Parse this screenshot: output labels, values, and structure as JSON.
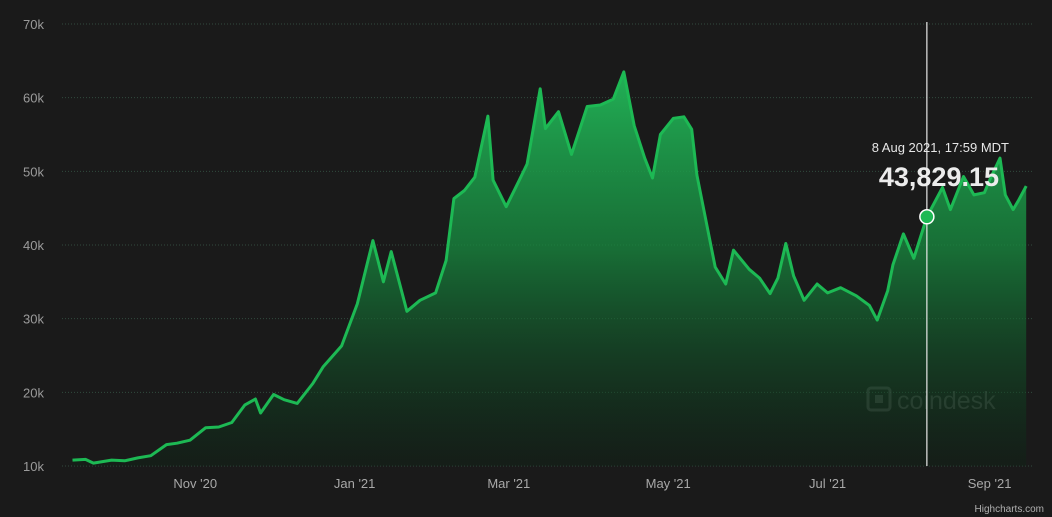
{
  "chart_data": {
    "type": "area",
    "title": "",
    "xlabel": "",
    "ylabel": "",
    "ylim": [
      10000,
      70000
    ],
    "xlim": [
      "2020-09-11",
      "2021-09-18"
    ],
    "grid": true,
    "y_ticks": [
      "10k",
      "20k",
      "30k",
      "40k",
      "50k",
      "60k",
      "70k"
    ],
    "x_ticks": [
      {
        "label": "Nov '20",
        "date": "2020-11-01"
      },
      {
        "label": "Jan '21",
        "date": "2021-01-01"
      },
      {
        "label": "Mar '21",
        "date": "2021-03-01"
      },
      {
        "label": "May '21",
        "date": "2021-05-01"
      },
      {
        "label": "Jul '21",
        "date": "2021-07-01"
      },
      {
        "label": "Sep '21",
        "date": "2021-09-01"
      }
    ],
    "colors": {
      "line": "#1db954",
      "fill_top": "#1f9e4c",
      "background": "#1a1a1a"
    },
    "series": [
      {
        "points": [
          [
            "2020-09-15",
            10800
          ],
          [
            "2020-09-20",
            10900
          ],
          [
            "2020-09-23",
            10400
          ],
          [
            "2020-09-30",
            10800
          ],
          [
            "2020-10-05",
            10700
          ],
          [
            "2020-10-10",
            11100
          ],
          [
            "2020-10-15",
            11400
          ],
          [
            "2020-10-21",
            12900
          ],
          [
            "2020-10-25",
            13100
          ],
          [
            "2020-10-30",
            13500
          ],
          [
            "2020-11-05",
            15200
          ],
          [
            "2020-11-10",
            15300
          ],
          [
            "2020-11-15",
            15900
          ],
          [
            "2020-11-20",
            18300
          ],
          [
            "2020-11-24",
            19100
          ],
          [
            "2020-11-26",
            17200
          ],
          [
            "2020-12-01",
            19700
          ],
          [
            "2020-12-05",
            19000
          ],
          [
            "2020-12-10",
            18500
          ],
          [
            "2020-12-16",
            21200
          ],
          [
            "2020-12-20",
            23500
          ],
          [
            "2020-12-27",
            26300
          ],
          [
            "2021-01-02",
            32000
          ],
          [
            "2021-01-08",
            40600
          ],
          [
            "2021-01-12",
            35000
          ],
          [
            "2021-01-15",
            39100
          ],
          [
            "2021-01-21",
            31000
          ],
          [
            "2021-01-26",
            32500
          ],
          [
            "2021-02-01",
            33500
          ],
          [
            "2021-02-05",
            37900
          ],
          [
            "2021-02-08",
            46300
          ],
          [
            "2021-02-12",
            47400
          ],
          [
            "2021-02-16",
            49200
          ],
          [
            "2021-02-21",
            57500
          ],
          [
            "2021-02-23",
            48800
          ],
          [
            "2021-02-28",
            45200
          ],
          [
            "2021-03-05",
            48800
          ],
          [
            "2021-03-08",
            51000
          ],
          [
            "2021-03-13",
            61200
          ],
          [
            "2021-03-15",
            55800
          ],
          [
            "2021-03-20",
            58100
          ],
          [
            "2021-03-25",
            52300
          ],
          [
            "2021-03-31",
            58800
          ],
          [
            "2021-04-05",
            59000
          ],
          [
            "2021-04-10",
            59800
          ],
          [
            "2021-04-14",
            63500
          ],
          [
            "2021-04-18",
            56200
          ],
          [
            "2021-04-22",
            51800
          ],
          [
            "2021-04-25",
            49100
          ],
          [
            "2021-04-28",
            55000
          ],
          [
            "2021-05-03",
            57200
          ],
          [
            "2021-05-07",
            57400
          ],
          [
            "2021-05-10",
            55700
          ],
          [
            "2021-05-12",
            49500
          ],
          [
            "2021-05-19",
            37000
          ],
          [
            "2021-05-23",
            34700
          ],
          [
            "2021-05-26",
            39300
          ],
          [
            "2021-06-01",
            36700
          ],
          [
            "2021-06-05",
            35500
          ],
          [
            "2021-06-09",
            33400
          ],
          [
            "2021-06-12",
            35500
          ],
          [
            "2021-06-15",
            40200
          ],
          [
            "2021-06-18",
            35800
          ],
          [
            "2021-06-22",
            32500
          ],
          [
            "2021-06-27",
            34700
          ],
          [
            "2021-07-01",
            33500
          ],
          [
            "2021-07-06",
            34200
          ],
          [
            "2021-07-12",
            33100
          ],
          [
            "2021-07-17",
            31800
          ],
          [
            "2021-07-20",
            29800
          ],
          [
            "2021-07-24",
            33800
          ],
          [
            "2021-07-26",
            37300
          ],
          [
            "2021-07-30",
            41500
          ],
          [
            "2021-08-03",
            38200
          ],
          [
            "2021-08-08",
            43829
          ],
          [
            "2021-08-14",
            47800
          ],
          [
            "2021-08-17",
            44800
          ],
          [
            "2021-08-22",
            49300
          ],
          [
            "2021-08-26",
            46800
          ],
          [
            "2021-08-30",
            47100
          ],
          [
            "2021-09-01",
            48800
          ],
          [
            "2021-09-05",
            51800
          ],
          [
            "2021-09-07",
            46800
          ],
          [
            "2021-09-10",
            44800
          ],
          [
            "2021-09-12",
            46000
          ],
          [
            "2021-09-15",
            48000
          ]
        ]
      }
    ],
    "tooltip": {
      "date": "2021-08-08",
      "value": 43829.15,
      "date_label": "8 Aug 2021, 17:59 MDT",
      "value_label": "43,829.15"
    },
    "watermark": "coindesk",
    "credit": "Highcharts.com"
  }
}
